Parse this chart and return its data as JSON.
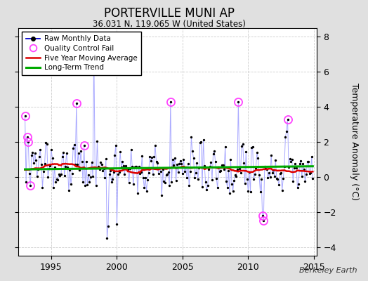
{
  "title": "PORTERVILLE MUNI AP",
  "subtitle": "36.031 N, 119.065 W (United States)",
  "ylabel": "Temperature Anomaly (°C)",
  "watermark": "Berkeley Earth",
  "xlim": [
    1992.5,
    2015.2
  ],
  "ylim": [
    -4.5,
    8.5
  ],
  "yticks": [
    -4,
    -2,
    0,
    2,
    4,
    6,
    8
  ],
  "xticks": [
    1995,
    2000,
    2005,
    2010,
    2015
  ],
  "raw_line_color": "#aaaaff",
  "raw_dot_color": "#000000",
  "ma_color": "#dd0000",
  "trend_color": "#00aa00",
  "qc_color": "#ff44ff",
  "plot_bg": "#ffffff",
  "fig_bg": "#e0e0e0",
  "grid_color": "#cccccc",
  "trend_value": 0.52,
  "seed": 137
}
